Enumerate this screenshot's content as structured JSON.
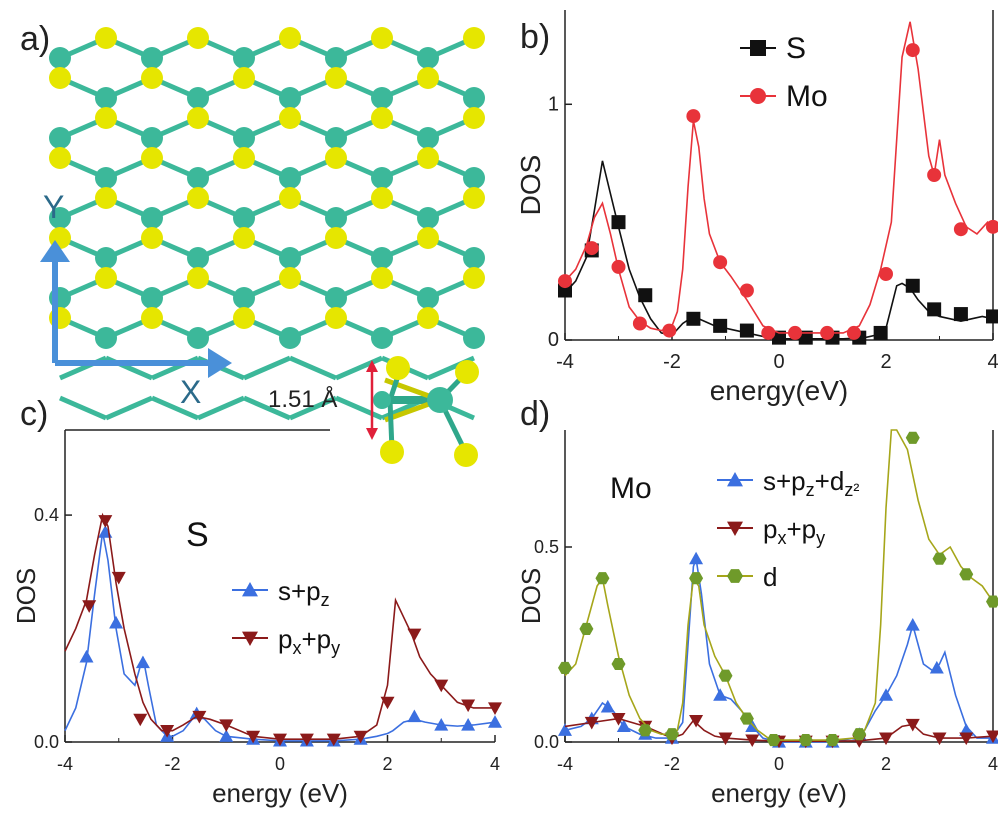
{
  "panels": {
    "a": {
      "label": "a)",
      "axis_x": "X",
      "axis_y": "Y",
      "dimension": "1.51 Å"
    },
    "b": {
      "label": "b)"
    },
    "c": {
      "label": "c)",
      "element": "S"
    },
    "d": {
      "label": "d)",
      "element": "Mo"
    }
  },
  "colors": {
    "S_atom": "#e6e600",
    "Mo_atom": "#3cb89a",
    "axis_arrow": "#4a90d9",
    "dimension_arrow": "#e0203a",
    "black": "#111111",
    "red": "#e8333a",
    "blue": "#3b6fe0",
    "darkred": "#8b1a1a",
    "olive": "#a6a61a",
    "olive_marker": "#6f9a2a"
  },
  "chart_data": [
    {
      "id": "b",
      "type": "line",
      "xlabel": "energy(eV)",
      "ylabel": "DOS",
      "xlim": [
        -4,
        4
      ],
      "ylim": [
        0,
        1.4
      ],
      "xticks": [
        -4,
        -2,
        0,
        2,
        4
      ],
      "xtick_labels": [
        "-4",
        "-2",
        "0",
        "2",
        "4"
      ],
      "yticks": [
        0,
        1
      ],
      "ytick_labels": [
        "0",
        "1"
      ],
      "legend_position": "top-center",
      "series": [
        {
          "name": "S",
          "color": "#111111",
          "marker": "square",
          "x": [
            -4.0,
            -3.8,
            -3.6,
            -3.45,
            -3.3,
            -3.15,
            -3.0,
            -2.8,
            -2.6,
            -2.4,
            -2.2,
            -2.0,
            -1.8,
            -1.6,
            -1.4,
            -1.2,
            -1.0,
            -0.6,
            -0.2,
            0.0,
            0.4,
            0.8,
            1.2,
            1.6,
            1.8,
            2.0,
            2.2,
            2.3,
            2.45,
            2.6,
            2.8,
            3.0,
            3.2,
            3.4,
            3.6,
            3.8,
            4.0
          ],
          "y": [
            0.2,
            0.25,
            0.35,
            0.55,
            0.76,
            0.62,
            0.48,
            0.3,
            0.18,
            0.09,
            0.03,
            0.02,
            0.07,
            0.1,
            0.08,
            0.06,
            0.05,
            0.03,
            0.01,
            0.005,
            0.005,
            0.005,
            0.005,
            0.01,
            0.02,
            0.05,
            0.23,
            0.24,
            0.22,
            0.17,
            0.12,
            0.1,
            0.09,
            0.08,
            0.09,
            0.1,
            0.09
          ],
          "marker_x": [
            -4.0,
            -3.5,
            -3.0,
            -2.5,
            -1.6,
            -1.1,
            -0.6,
            0.0,
            0.5,
            1.0,
            1.5,
            1.9,
            2.5,
            2.9,
            3.4,
            4.0
          ],
          "marker_y": [
            0.21,
            0.38,
            0.5,
            0.19,
            0.09,
            0.06,
            0.04,
            0.01,
            0.01,
            0.01,
            0.01,
            0.03,
            0.23,
            0.13,
            0.11,
            0.1
          ]
        },
        {
          "name": "Mo",
          "color": "#e8333a",
          "marker": "circle",
          "x": [
            -4.0,
            -3.8,
            -3.6,
            -3.45,
            -3.3,
            -3.15,
            -3.0,
            -2.8,
            -2.6,
            -2.4,
            -2.2,
            -2.0,
            -1.9,
            -1.8,
            -1.7,
            -1.6,
            -1.5,
            -1.4,
            -1.3,
            -1.1,
            -0.9,
            -0.6,
            -0.3,
            0.0,
            0.4,
            0.8,
            1.2,
            1.5,
            1.7,
            1.9,
            2.1,
            2.3,
            2.45,
            2.6,
            2.8,
            2.9,
            3.0,
            3.1,
            3.3,
            3.5,
            3.7,
            3.9,
            4.0
          ],
          "y": [
            0.25,
            0.3,
            0.4,
            0.52,
            0.58,
            0.45,
            0.3,
            0.14,
            0.08,
            0.05,
            0.04,
            0.06,
            0.12,
            0.3,
            0.65,
            0.93,
            0.82,
            0.6,
            0.45,
            0.33,
            0.27,
            0.17,
            0.06,
            0.03,
            0.03,
            0.03,
            0.03,
            0.06,
            0.15,
            0.3,
            0.5,
            1.2,
            1.35,
            1.15,
            0.78,
            0.7,
            0.85,
            0.7,
            0.58,
            0.48,
            0.45,
            0.5,
            0.48
          ],
          "marker_x": [
            -4.0,
            -3.5,
            -3.0,
            -2.6,
            -2.05,
            -1.6,
            -1.1,
            -0.6,
            -0.2,
            0.3,
            0.9,
            1.4,
            2.0,
            2.5,
            2.9,
            3.4,
            4.0
          ],
          "marker_y": [
            0.25,
            0.39,
            0.31,
            0.07,
            0.04,
            0.95,
            0.33,
            0.21,
            0.03,
            0.03,
            0.03,
            0.03,
            0.28,
            1.23,
            0.7,
            0.47,
            0.48
          ]
        }
      ]
    },
    {
      "id": "c",
      "type": "line",
      "xlabel": "energy (eV)",
      "ylabel": "DOS",
      "xlim": [
        -4,
        4
      ],
      "ylim": [
        0,
        0.55
      ],
      "xticks": [
        -4,
        -2,
        0,
        2,
        4
      ],
      "xtick_labels": [
        "-4",
        "-2",
        "0",
        "2",
        "4"
      ],
      "yticks": [
        0,
        0.4
      ],
      "ytick_labels": [
        "0.0",
        "0.4"
      ],
      "legend_position": "center",
      "series": [
        {
          "name": "s+pz",
          "legend_base": "s+p",
          "legend_sub": "z",
          "color": "#3b6fe0",
          "marker": "triangle-up",
          "x": [
            -4.0,
            -3.8,
            -3.6,
            -3.45,
            -3.3,
            -3.2,
            -3.05,
            -2.9,
            -2.7,
            -2.55,
            -2.45,
            -2.3,
            -2.1,
            -2.0,
            -1.8,
            -1.55,
            -1.4,
            -1.2,
            -1.0,
            -0.5,
            0.0,
            0.5,
            1.0,
            1.5,
            1.8,
            2.0,
            2.1,
            2.3,
            2.5,
            2.7,
            3.0,
            3.3,
            3.6,
            4.0
          ],
          "y": [
            0.02,
            0.06,
            0.14,
            0.26,
            0.37,
            0.32,
            0.2,
            0.12,
            0.1,
            0.15,
            0.1,
            0.03,
            0.01,
            0.01,
            0.02,
            0.05,
            0.04,
            0.02,
            0.01,
            0.005,
            0.002,
            0.002,
            0.002,
            0.005,
            0.01,
            0.015,
            0.02,
            0.035,
            0.04,
            0.035,
            0.03,
            0.028,
            0.03,
            0.035
          ],
          "marker_x": [
            -3.6,
            -3.25,
            -3.05,
            -2.55,
            -2.1,
            -1.55,
            -1.0,
            -0.5,
            0.0,
            0.5,
            1.0,
            1.5,
            2.5,
            3.0,
            3.5,
            4.0
          ],
          "marker_y": [
            0.15,
            0.37,
            0.21,
            0.14,
            0.01,
            0.05,
            0.01,
            0.005,
            0.002,
            0.002,
            0.002,
            0.005,
            0.045,
            0.03,
            0.03,
            0.035
          ]
        },
        {
          "name": "px+py",
          "legend_base": "p",
          "legend_sub": "x",
          "legend_mid": "+p",
          "legend_sub2": "y",
          "color": "#8b1a1a",
          "marker": "triangle-down",
          "x": [
            -4.0,
            -3.8,
            -3.6,
            -3.45,
            -3.3,
            -3.2,
            -3.05,
            -2.9,
            -2.7,
            -2.55,
            -2.4,
            -2.2,
            -2.0,
            -1.8,
            -1.55,
            -1.3,
            -1.0,
            -0.5,
            0.0,
            0.5,
            1.0,
            1.5,
            1.8,
            2.0,
            2.15,
            2.3,
            2.45,
            2.6,
            2.8,
            3.0,
            3.3,
            3.6,
            4.0
          ],
          "y": [
            0.16,
            0.2,
            0.25,
            0.33,
            0.4,
            0.38,
            0.28,
            0.2,
            0.12,
            0.07,
            0.04,
            0.02,
            0.02,
            0.03,
            0.045,
            0.04,
            0.03,
            0.01,
            0.005,
            0.005,
            0.005,
            0.01,
            0.03,
            0.1,
            0.25,
            0.22,
            0.19,
            0.15,
            0.12,
            0.1,
            0.07,
            0.06,
            0.06
          ],
          "marker_x": [
            -3.55,
            -3.25,
            -3.0,
            -2.6,
            -2.1,
            -1.5,
            -1.0,
            -0.5,
            0.0,
            0.5,
            1.0,
            1.5,
            2.0,
            2.5,
            3.0,
            3.5,
            4.0
          ],
          "marker_y": [
            0.24,
            0.39,
            0.29,
            0.04,
            0.02,
            0.045,
            0.03,
            0.01,
            0.005,
            0.005,
            0.005,
            0.01,
            0.07,
            0.19,
            0.1,
            0.065,
            0.06
          ]
        }
      ]
    },
    {
      "id": "d",
      "type": "line",
      "xlabel": "energy (eV)",
      "ylabel": "DOS",
      "xlim": [
        -4,
        4
      ],
      "ylim": [
        0,
        0.8
      ],
      "xticks": [
        -4,
        -2,
        0,
        2,
        4
      ],
      "xtick_labels": [
        "-4",
        "-2",
        "0",
        "2",
        "4"
      ],
      "yticks": [
        0,
        0.5
      ],
      "ytick_labels": [
        "0.0",
        "0.5"
      ],
      "legend_position": "top-center",
      "series": [
        {
          "name": "s+pz+dz2",
          "legend_base": "s+p",
          "legend_sub": "z",
          "legend_mid": "+d",
          "legend_sub2": "z²",
          "color": "#3b6fe0",
          "marker": "triangle-up",
          "x": [
            -4.0,
            -3.7,
            -3.5,
            -3.3,
            -3.1,
            -2.9,
            -2.6,
            -2.3,
            -2.0,
            -1.8,
            -1.7,
            -1.6,
            -1.55,
            -1.45,
            -1.3,
            -1.1,
            -0.9,
            -0.7,
            -0.5,
            -0.3,
            0.0,
            0.5,
            1.0,
            1.4,
            1.6,
            1.8,
            2.0,
            2.2,
            2.4,
            2.5,
            2.7,
            2.9,
            3.0,
            3.1,
            3.3,
            3.5,
            3.7,
            4.0
          ],
          "y": [
            0.03,
            0.04,
            0.06,
            0.1,
            0.08,
            0.04,
            0.02,
            0.01,
            0.01,
            0.05,
            0.25,
            0.45,
            0.47,
            0.38,
            0.2,
            0.12,
            0.11,
            0.08,
            0.04,
            0.01,
            0.0,
            0.0,
            0.0,
            0.01,
            0.03,
            0.08,
            0.12,
            0.17,
            0.25,
            0.3,
            0.2,
            0.18,
            0.2,
            0.23,
            0.12,
            0.04,
            0.01,
            0.01
          ],
          "marker_x": [
            -4.0,
            -3.5,
            -3.2,
            -2.9,
            -2.5,
            -2.0,
            -1.55,
            -1.1,
            -0.5,
            0.0,
            0.5,
            1.0,
            1.5,
            2.0,
            2.5,
            2.95,
            3.5,
            4.0
          ],
          "marker_y": [
            0.03,
            0.06,
            0.09,
            0.04,
            0.02,
            0.01,
            0.47,
            0.12,
            0.04,
            0.0,
            0.0,
            0.0,
            0.02,
            0.12,
            0.3,
            0.19,
            0.03,
            0.01
          ]
        },
        {
          "name": "px+py",
          "legend_base": "p",
          "legend_sub": "x",
          "legend_mid": "+p",
          "legend_sub2": "y",
          "color": "#8b1a1a",
          "marker": "triangle-down",
          "x": [
            -4.0,
            -3.5,
            -3.0,
            -2.5,
            -2.0,
            -1.8,
            -1.6,
            -1.4,
            -1.2,
            -1.0,
            -0.5,
            0.0,
            0.5,
            1.0,
            1.5,
            2.0,
            2.3,
            2.5,
            2.7,
            3.0,
            3.5,
            4.0
          ],
          "y": [
            0.04,
            0.05,
            0.06,
            0.04,
            0.01,
            0.02,
            0.055,
            0.03,
            0.015,
            0.01,
            0.005,
            0.002,
            0.002,
            0.002,
            0.003,
            0.01,
            0.04,
            0.045,
            0.02,
            0.01,
            0.01,
            0.015
          ],
          "marker_x": [
            -3.5,
            -3.0,
            -2.5,
            -2.0,
            -1.55,
            -1.0,
            -0.5,
            0.0,
            0.5,
            1.0,
            1.5,
            2.0,
            2.5,
            3.0,
            3.5,
            4.0
          ],
          "marker_y": [
            0.05,
            0.06,
            0.04,
            0.01,
            0.055,
            0.01,
            0.005,
            0.002,
            0.002,
            0.002,
            0.003,
            0.01,
            0.045,
            0.01,
            0.01,
            0.015
          ]
        },
        {
          "name": "d",
          "legend_base": "d",
          "color": "#a6a61a",
          "marker_color": "#6f9a2a",
          "marker": "hexagon",
          "x": [
            -4.0,
            -3.8,
            -3.6,
            -3.4,
            -3.3,
            -3.2,
            -3.0,
            -2.8,
            -2.6,
            -2.4,
            -2.2,
            -2.0,
            -1.9,
            -1.8,
            -1.7,
            -1.6,
            -1.5,
            -1.4,
            -1.2,
            -1.0,
            -0.8,
            -0.6,
            -0.4,
            -0.2,
            0.0,
            0.5,
            1.0,
            1.4,
            1.6,
            1.8,
            1.9,
            2.0,
            2.1,
            2.2,
            2.4,
            2.6,
            2.8,
            3.0,
            3.2,
            3.4,
            3.6,
            3.8,
            4.0
          ],
          "y": [
            0.17,
            0.2,
            0.3,
            0.4,
            0.42,
            0.35,
            0.22,
            0.12,
            0.06,
            0.03,
            0.02,
            0.02,
            0.03,
            0.1,
            0.3,
            0.42,
            0.4,
            0.3,
            0.22,
            0.17,
            0.1,
            0.06,
            0.03,
            0.01,
            0.005,
            0.005,
            0.005,
            0.01,
            0.03,
            0.1,
            0.3,
            0.6,
            0.8,
            0.8,
            0.75,
            0.62,
            0.52,
            0.48,
            0.5,
            0.45,
            0.42,
            0.4,
            0.36
          ],
          "marker_x": [
            -4.0,
            -3.6,
            -3.3,
            -3.0,
            -2.5,
            -2.0,
            -1.55,
            -1.0,
            -0.6,
            -0.1,
            0.5,
            1.0,
            1.5,
            2.5,
            3.0,
            3.5,
            4.0
          ],
          "marker_y": [
            0.19,
            0.29,
            0.42,
            0.2,
            0.03,
            0.02,
            0.42,
            0.17,
            0.06,
            0.005,
            0.005,
            0.005,
            0.02,
            0.78,
            0.47,
            0.43,
            0.36
          ]
        }
      ]
    }
  ]
}
